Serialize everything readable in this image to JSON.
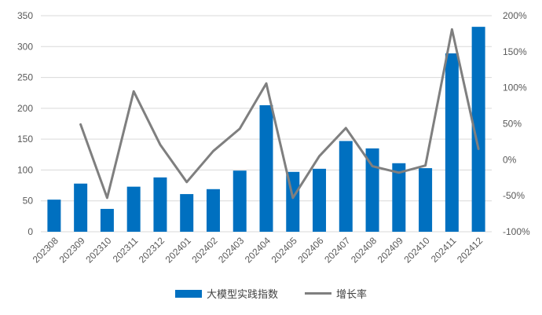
{
  "colors": {
    "bar": "#0070c0",
    "line": "#7f7f7f",
    "grid": "#d9d9d9",
    "text": "#595959"
  },
  "legend": {
    "bar_label": "大模型实践指数",
    "line_label": "增长率",
    "position": "bottom"
  },
  "chart_data": {
    "type": "bar",
    "title": "",
    "xlabel": "",
    "ylabel": "",
    "categories": [
      "202308",
      "202309",
      "202310",
      "202311",
      "202312",
      "202401",
      "202402",
      "202403",
      "202404",
      "202405",
      "202406",
      "202407",
      "202408",
      "202409",
      "202410",
      "202411",
      "202412"
    ],
    "series": [
      {
        "name": "大模型实践指数",
        "type": "bar",
        "axis": "left",
        "values": [
          52,
          78,
          37,
          73,
          88,
          61,
          69,
          99,
          205,
          97,
          102,
          147,
          135,
          111,
          103,
          289,
          332
        ]
      },
      {
        "name": "增长率",
        "type": "line",
        "axis": "right",
        "values": [
          null,
          49,
          -53,
          95,
          21,
          -31,
          12,
          43,
          106,
          -53,
          5,
          44,
          -9,
          -18,
          -8,
          181,
          15
        ]
      }
    ],
    "ylim": [
      0,
      350
    ],
    "y_ticks": [
      "0",
      "50",
      "100",
      "150",
      "200",
      "250",
      "300",
      "350"
    ],
    "y2lim": [
      -100,
      200
    ],
    "y2_ticks": [
      "-100%",
      "-50%",
      "0%",
      "50%",
      "100%",
      "150%",
      "200%"
    ],
    "grid": true,
    "x_tick_rotation": -45
  }
}
